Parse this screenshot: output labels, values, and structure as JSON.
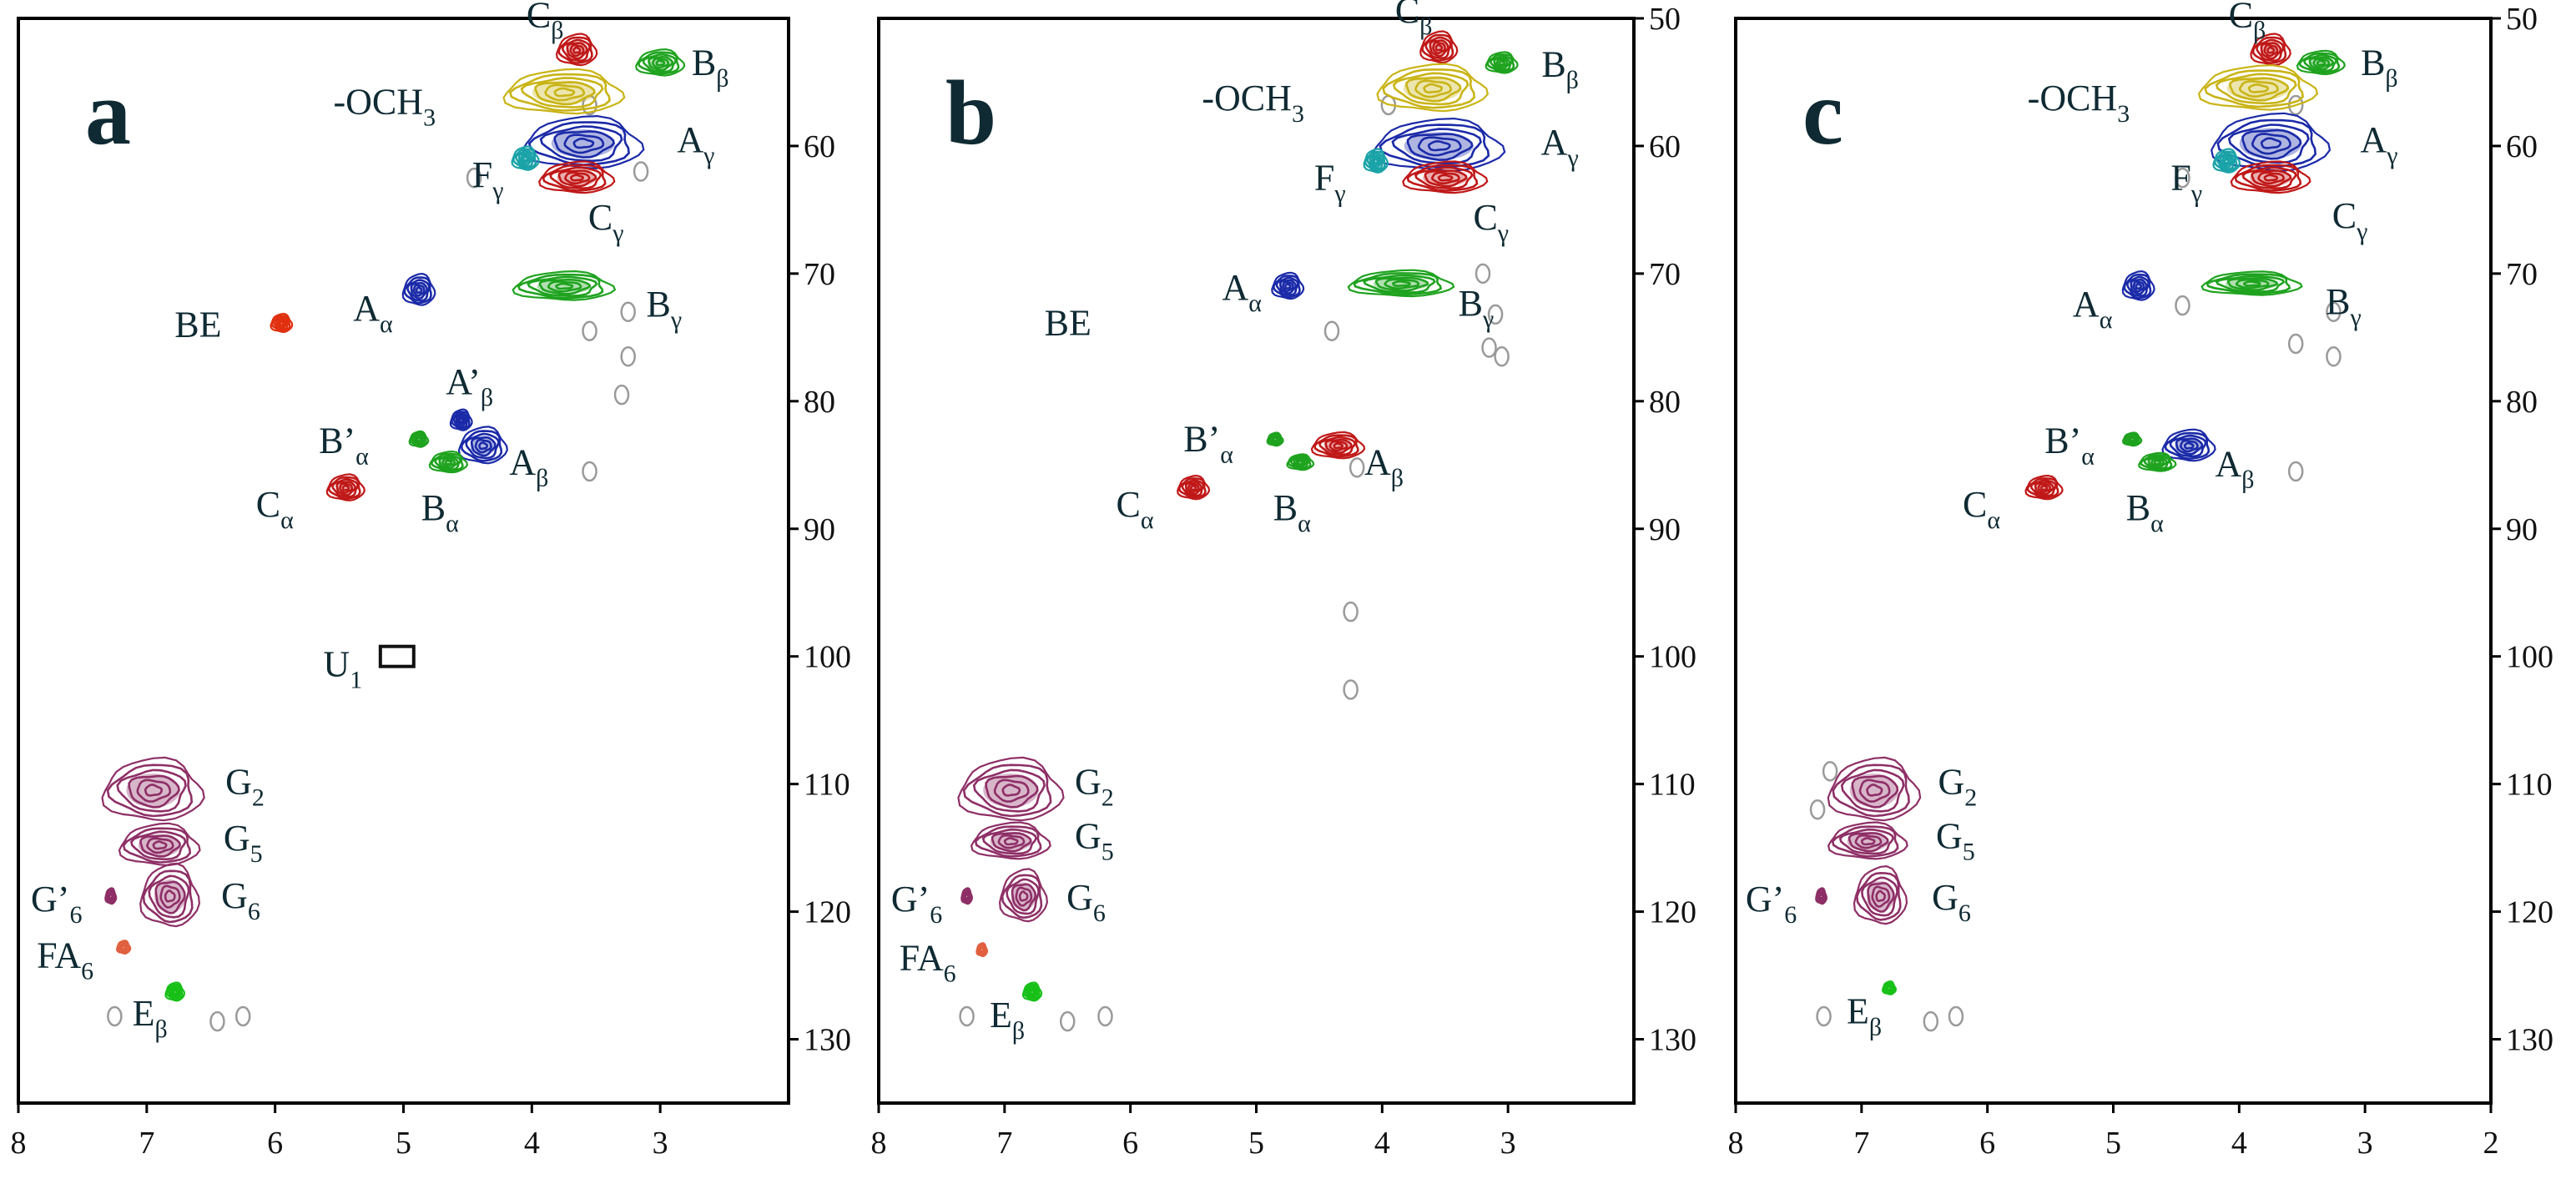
{
  "chart_data": [
    {
      "type": "scatter",
      "panel_label": "a",
      "xlim": [
        8,
        2
      ],
      "ylim": [
        50,
        135
      ],
      "xticks": [
        "8",
        "7",
        "6",
        "5",
        "4",
        "3"
      ],
      "yticks": [
        "60",
        "70",
        "80",
        "90",
        "100",
        "110",
        "120",
        "130"
      ],
      "peaks": [
        {
          "id": "a-cb",
          "label": "Cβ",
          "x": 3.65,
          "y": 52.5,
          "color": "#c01818",
          "rx": 0.15,
          "ry": 1.2
        },
        {
          "id": "a-bb",
          "label": "Bβ",
          "x": 3.0,
          "y": 53.5,
          "color": "#1fa31f",
          "rx": 0.18,
          "ry": 1.0
        },
        {
          "id": "a-och3",
          "label": "-OCH3",
          "x": 3.75,
          "y": 55.8,
          "color": "#c9b416",
          "rx": 0.45,
          "ry": 1.7
        },
        {
          "id": "a-ag",
          "label": "Aγ",
          "x": 3.6,
          "y": 59.8,
          "color": "#1b2aa8",
          "rx": 0.45,
          "ry": 2.0
        },
        {
          "id": "a-fg",
          "label": "Fγ",
          "x": 4.05,
          "y": 61.0,
          "color": "#1aa3a8",
          "rx": 0.1,
          "ry": 0.9
        },
        {
          "id": "a-cg",
          "label": "Cγ",
          "x": 3.65,
          "y": 62.5,
          "color": "#c01818",
          "rx": 0.28,
          "ry": 1.2
        },
        {
          "id": "a-aa",
          "label": "Aα",
          "x": 4.88,
          "y": 71.3,
          "color": "#1b2aa8",
          "rx": 0.12,
          "ry": 1.2
        },
        {
          "id": "a-bg",
          "label": "Bγ",
          "x": 3.75,
          "y": 71.0,
          "color": "#1fa31f",
          "rx": 0.38,
          "ry": 1.1
        },
        {
          "id": "a-be",
          "label": "BE",
          "x": 5.95,
          "y": 73.9,
          "color": "#e03010",
          "rx": 0.08,
          "ry": 0.7
        },
        {
          "id": "a-apb",
          "label": "A’β",
          "x": 4.55,
          "y": 81.5,
          "color": "#1b2aa8",
          "rx": 0.08,
          "ry": 0.8
        },
        {
          "id": "a-ab",
          "label": "Aβ",
          "x": 4.38,
          "y": 83.5,
          "color": "#1b2aa8",
          "rx": 0.18,
          "ry": 1.4
        },
        {
          "id": "a-bpa",
          "label": "B’α",
          "x": 4.88,
          "y": 83.0,
          "color": "#1fa31f",
          "rx": 0.07,
          "ry": 0.6
        },
        {
          "id": "a-ba",
          "label": "Bα",
          "x": 4.65,
          "y": 84.8,
          "color": "#1fa31f",
          "rx": 0.14,
          "ry": 0.8
        },
        {
          "id": "a-ca",
          "label": "Cα",
          "x": 5.45,
          "y": 86.8,
          "color": "#c01818",
          "rx": 0.14,
          "ry": 1.0
        },
        {
          "id": "a-g2",
          "label": "G2",
          "x": 6.95,
          "y": 110.5,
          "color": "#8e2f66",
          "rx": 0.38,
          "ry": 2.4
        },
        {
          "id": "a-g5",
          "label": "G5",
          "x": 6.9,
          "y": 114.8,
          "color": "#8e2f66",
          "rx": 0.3,
          "ry": 1.6
        },
        {
          "id": "a-g6",
          "label": "G6",
          "x": 6.82,
          "y": 118.8,
          "color": "#8e2f66",
          "rx": 0.22,
          "ry": 2.4
        },
        {
          "id": "a-gp6",
          "label": "G’6",
          "x": 7.28,
          "y": 118.8,
          "color": "#8e2f66",
          "rx": 0.04,
          "ry": 0.6
        },
        {
          "id": "a-fa6",
          "label": "FA6",
          "x": 7.18,
          "y": 122.8,
          "color": "#e06040",
          "rx": 0.05,
          "ry": 0.5
        },
        {
          "id": "a-eb",
          "label": "Eβ",
          "x": 6.78,
          "y": 126.3,
          "color": "#18c018",
          "rx": 0.07,
          "ry": 0.7
        },
        {
          "id": "a-u1",
          "label": "U1",
          "x": 5.05,
          "y": 100.0,
          "color": "#111111",
          "rx": 0.12,
          "ry": 0.8,
          "box": true
        }
      ],
      "gray_spots": [
        {
          "x": 3.55,
          "y": 56.8
        },
        {
          "x": 3.15,
          "y": 62.0
        },
        {
          "x": 4.45,
          "y": 62.5
        },
        {
          "x": 3.25,
          "y": 73.0
        },
        {
          "x": 3.55,
          "y": 74.5
        },
        {
          "x": 3.25,
          "y": 76.5
        },
        {
          "x": 3.3,
          "y": 79.5
        },
        {
          "x": 3.55,
          "y": 85.5
        },
        {
          "x": 7.25,
          "y": 128.2
        },
        {
          "x": 6.45,
          "y": 128.6
        },
        {
          "x": 6.25,
          "y": 128.2
        }
      ]
    },
    {
      "type": "scatter",
      "panel_label": "b",
      "xlim": [
        8,
        2
      ],
      "ylim": [
        50,
        135
      ],
      "xticks": [
        "8",
        "7",
        "6",
        "5",
        "4",
        "3"
      ],
      "yticks": [
        "50",
        "60",
        "70",
        "80",
        "90",
        "100",
        "110",
        "120",
        "130"
      ],
      "peaks": [
        {
          "id": "b-cb",
          "label": "Cβ",
          "x": 3.55,
          "y": 52.3,
          "color": "#c01818",
          "rx": 0.14,
          "ry": 1.2
        },
        {
          "id": "b-bb",
          "label": "Bβ",
          "x": 3.05,
          "y": 53.5,
          "color": "#1fa31f",
          "rx": 0.12,
          "ry": 0.8
        },
        {
          "id": "b-och3",
          "label": "-OCH3",
          "x": 3.6,
          "y": 55.5,
          "color": "#c9b416",
          "rx": 0.42,
          "ry": 1.8
        },
        {
          "id": "b-ag",
          "label": "Aγ",
          "x": 3.55,
          "y": 60.0,
          "color": "#1b2aa8",
          "rx": 0.5,
          "ry": 2.0
        },
        {
          "id": "b-fg",
          "label": "Fγ",
          "x": 4.05,
          "y": 61.2,
          "color": "#1aa3a8",
          "rx": 0.09,
          "ry": 0.9
        },
        {
          "id": "b-cg",
          "label": "Cγ",
          "x": 3.5,
          "y": 62.5,
          "color": "#c01818",
          "rx": 0.32,
          "ry": 1.2
        },
        {
          "id": "b-aa",
          "label": "Aα",
          "x": 4.75,
          "y": 71.0,
          "color": "#1b2aa8",
          "rx": 0.12,
          "ry": 1.0
        },
        {
          "id": "b-bg",
          "label": "Bγ",
          "x": 3.85,
          "y": 70.8,
          "color": "#1fa31f",
          "rx": 0.4,
          "ry": 1.0
        },
        {
          "id": "b-be",
          "label": "BE",
          "x": 5.9,
          "y": 73.9,
          "color": "#e03010",
          "rx": 0.0,
          "ry": 0.0,
          "hidden": true
        },
        {
          "id": "b-ab",
          "label": "Aβ",
          "x": 4.35,
          "y": 83.5,
          "color": "#c01818",
          "rx": 0.2,
          "ry": 1.0
        },
        {
          "id": "b-bpa",
          "label": "B’α",
          "x": 4.85,
          "y": 83.0,
          "color": "#1fa31f",
          "rx": 0.06,
          "ry": 0.5
        },
        {
          "id": "b-ba",
          "label": "Bα",
          "x": 4.65,
          "y": 84.8,
          "color": "#1fa31f",
          "rx": 0.1,
          "ry": 0.6
        },
        {
          "id": "b-ca",
          "label": "Cα",
          "x": 5.5,
          "y": 86.8,
          "color": "#c01818",
          "rx": 0.12,
          "ry": 0.9
        },
        {
          "id": "b-g2",
          "label": "G2",
          "x": 6.95,
          "y": 110.5,
          "color": "#8e2f66",
          "rx": 0.4,
          "ry": 2.4
        },
        {
          "id": "b-g5",
          "label": "G5",
          "x": 6.95,
          "y": 114.5,
          "color": "#8e2f66",
          "rx": 0.3,
          "ry": 1.4
        },
        {
          "id": "b-g6",
          "label": "G6",
          "x": 6.85,
          "y": 118.8,
          "color": "#8e2f66",
          "rx": 0.18,
          "ry": 2.0
        },
        {
          "id": "b-gp6",
          "label": "G’6",
          "x": 7.3,
          "y": 118.8,
          "color": "#8e2f66",
          "rx": 0.04,
          "ry": 0.6
        },
        {
          "id": "b-fa6",
          "label": "FA6",
          "x": 7.18,
          "y": 123.0,
          "color": "#e06040",
          "rx": 0.04,
          "ry": 0.5
        },
        {
          "id": "b-eb",
          "label": "Eβ",
          "x": 6.78,
          "y": 126.3,
          "color": "#18c018",
          "rx": 0.07,
          "ry": 0.7
        }
      ],
      "gray_spots": [
        {
          "x": 4.25,
          "y": 96.5
        },
        {
          "x": 4.25,
          "y": 102.6
        },
        {
          "x": 3.2,
          "y": 70.0
        },
        {
          "x": 3.1,
          "y": 73.2
        },
        {
          "x": 3.15,
          "y": 75.8
        },
        {
          "x": 3.05,
          "y": 76.5
        },
        {
          "x": 4.4,
          "y": 74.5
        },
        {
          "x": 4.2,
          "y": 85.2
        },
        {
          "x": 7.3,
          "y": 128.2
        },
        {
          "x": 6.5,
          "y": 128.6
        },
        {
          "x": 6.2,
          "y": 128.2
        },
        {
          "x": 3.95,
          "y": 56.8
        }
      ]
    },
    {
      "type": "scatter",
      "panel_label": "c",
      "xlim": [
        8,
        2
      ],
      "ylim": [
        50,
        135
      ],
      "xticks": [
        "8",
        "7",
        "6",
        "5",
        "4",
        "3",
        "2"
      ],
      "yticks": [
        "50",
        "60",
        "70",
        "80",
        "90",
        "100",
        "110",
        "120",
        "130"
      ],
      "peaks": [
        {
          "id": "c-cb",
          "label": "Cβ",
          "x": 3.75,
          "y": 52.5,
          "color": "#c01818",
          "rx": 0.15,
          "ry": 1.2
        },
        {
          "id": "c-bb",
          "label": "Bβ",
          "x": 3.35,
          "y": 53.5,
          "color": "#1fa31f",
          "rx": 0.18,
          "ry": 0.9
        },
        {
          "id": "c-och3",
          "label": "-OCH3",
          "x": 3.85,
          "y": 55.5,
          "color": "#c9b416",
          "rx": 0.45,
          "ry": 1.7
        },
        {
          "id": "c-ag",
          "label": "Aγ",
          "x": 3.75,
          "y": 59.8,
          "color": "#1b2aa8",
          "rx": 0.45,
          "ry": 2.2
        },
        {
          "id": "c-fg",
          "label": "Fγ",
          "x": 4.1,
          "y": 61.2,
          "color": "#1aa3a8",
          "rx": 0.1,
          "ry": 0.9
        },
        {
          "id": "c-cg",
          "label": "Cγ",
          "x": 3.75,
          "y": 62.5,
          "color": "#c01818",
          "rx": 0.3,
          "ry": 1.2
        },
        {
          "id": "c-aa",
          "label": "Aα",
          "x": 4.8,
          "y": 71.0,
          "color": "#1b2aa8",
          "rx": 0.12,
          "ry": 1.1
        },
        {
          "id": "c-bg",
          "label": "Bγ",
          "x": 3.9,
          "y": 70.8,
          "color": "#1fa31f",
          "rx": 0.38,
          "ry": 0.9
        },
        {
          "id": "c-ab",
          "label": "Aβ",
          "x": 4.4,
          "y": 83.5,
          "color": "#1b2aa8",
          "rx": 0.2,
          "ry": 1.2
        },
        {
          "id": "c-bpa",
          "label": "B’α",
          "x": 4.85,
          "y": 83.0,
          "color": "#1fa31f",
          "rx": 0.07,
          "ry": 0.5
        },
        {
          "id": "c-ba",
          "label": "Bα",
          "x": 4.65,
          "y": 84.8,
          "color": "#1fa31f",
          "rx": 0.14,
          "ry": 0.7
        },
        {
          "id": "c-ca",
          "label": "Cα",
          "x": 5.55,
          "y": 86.8,
          "color": "#c01818",
          "rx": 0.14,
          "ry": 0.9
        },
        {
          "id": "c-g2",
          "label": "G2",
          "x": 6.9,
          "y": 110.5,
          "color": "#8e2f66",
          "rx": 0.35,
          "ry": 2.4
        },
        {
          "id": "c-g5",
          "label": "G5",
          "x": 6.95,
          "y": 114.5,
          "color": "#8e2f66",
          "rx": 0.3,
          "ry": 1.4
        },
        {
          "id": "c-g6",
          "label": "G6",
          "x": 6.85,
          "y": 118.8,
          "color": "#8e2f66",
          "rx": 0.2,
          "ry": 2.2
        },
        {
          "id": "c-gp6",
          "label": "G’6",
          "x": 7.32,
          "y": 118.8,
          "color": "#8e2f66",
          "rx": 0.04,
          "ry": 0.6
        },
        {
          "id": "c-eb",
          "label": "Eβ",
          "x": 6.78,
          "y": 126.0,
          "color": "#18c018",
          "rx": 0.05,
          "ry": 0.5
        }
      ],
      "gray_spots": [
        {
          "x": 7.3,
          "y": 128.2
        },
        {
          "x": 6.45,
          "y": 128.6
        },
        {
          "x": 6.25,
          "y": 128.2
        },
        {
          "x": 4.45,
          "y": 62.5
        },
        {
          "x": 4.45,
          "y": 72.5
        },
        {
          "x": 3.25,
          "y": 73.0
        },
        {
          "x": 3.55,
          "y": 75.5
        },
        {
          "x": 3.25,
          "y": 76.5
        },
        {
          "x": 3.55,
          "y": 85.5
        },
        {
          "x": 7.35,
          "y": 112.0
        },
        {
          "x": 7.25,
          "y": 109.0
        },
        {
          "x": 3.55,
          "y": 56.8
        }
      ]
    }
  ]
}
